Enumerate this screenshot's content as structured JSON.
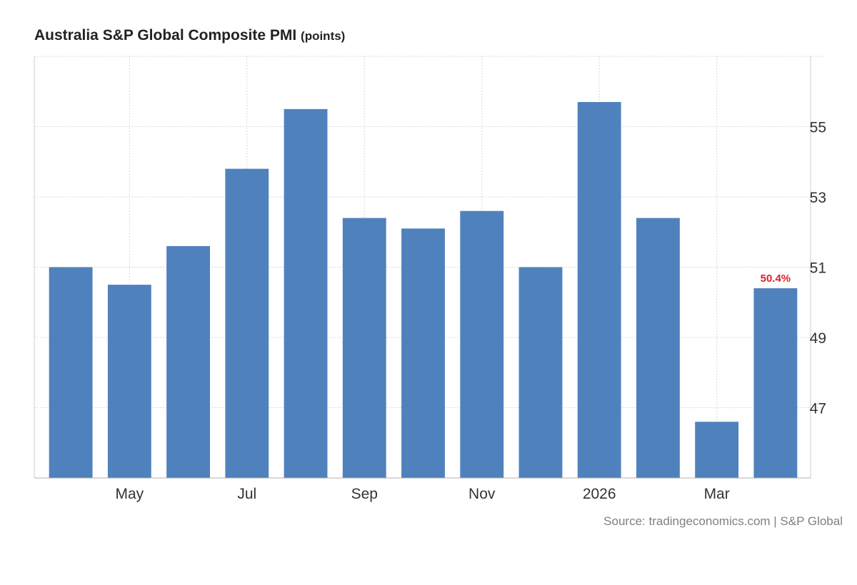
{
  "header": {
    "title": "Australia S&P Global Composite PMI",
    "unit": "(points)"
  },
  "footer": {
    "source": "Source: tradingeconomics.com | S&P Global"
  },
  "chart_data": {
    "type": "bar",
    "title": "Australia S&P Global Composite PMI",
    "unit": "points",
    "xlabel": "",
    "ylabel": "",
    "x": [
      "2025-04",
      "2025-05",
      "2025-06",
      "2025-07",
      "2025-08",
      "2025-09",
      "2025-10",
      "2025-11",
      "2025-12",
      "2026-01",
      "2026-02",
      "2026-03",
      "2026-04"
    ],
    "values": [
      51.0,
      50.5,
      51.6,
      53.8,
      55.5,
      52.4,
      52.1,
      52.6,
      51.0,
      55.7,
      52.4,
      46.6,
      50.4
    ],
    "x_tick_labels": [
      {
        "x": "2025-05",
        "label": "May"
      },
      {
        "x": "2025-07",
        "label": "Jul"
      },
      {
        "x": "2025-09",
        "label": "Sep"
      },
      {
        "x": "2025-11",
        "label": "Nov"
      },
      {
        "x": "2026-01",
        "label": "2026"
      },
      {
        "x": "2026-03",
        "label": "Mar"
      }
    ],
    "y_ticks": [
      47,
      49,
      51,
      53,
      55
    ],
    "ylim": [
      45.0,
      57.0
    ],
    "y_axis_side": "right",
    "grid": true,
    "legend": "none",
    "last_value_label": "50.4%",
    "colors": {
      "bar": "#4f81bd",
      "grid": "#d8d8d8",
      "axis": "#cccccc",
      "tick_text": "#333333",
      "highlight_text": "#e0202a"
    }
  }
}
